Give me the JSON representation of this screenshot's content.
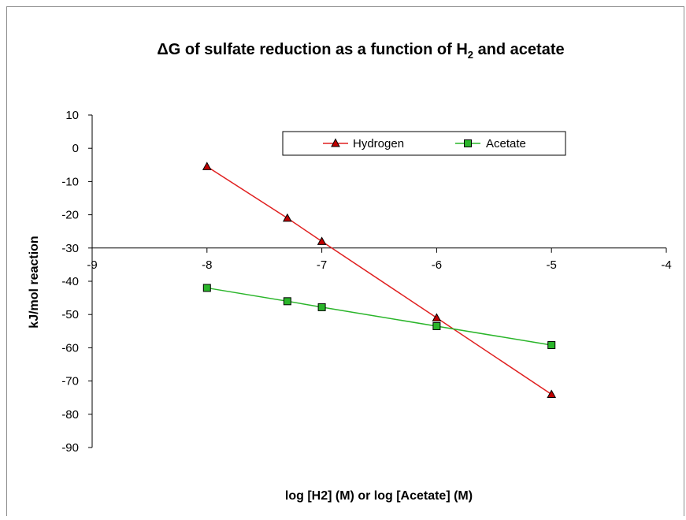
{
  "chart_data": {
    "type": "line",
    "title_parts": {
      "pre": "ΔG of sulfate reduction as a function of H",
      "sub": "2",
      "post": " and acetate"
    },
    "xlabel": "log [H2] (M)  or log  [Acetate] (M)",
    "ylabel": "kJ/mol reaction",
    "xlim": [
      -9,
      -4
    ],
    "ylim": [
      -90,
      10
    ],
    "x_ticks": [
      -9,
      -8,
      -7,
      -6,
      -5,
      -4
    ],
    "y_ticks": [
      10,
      0,
      -10,
      -20,
      -30,
      -40,
      -50,
      -60,
      -70,
      -80,
      -90
    ],
    "x_axis_crosses_y_at": -30,
    "grid": false,
    "legend_position": "top-right",
    "series": [
      {
        "name": "Hydrogen",
        "color": "#e02020",
        "marker": "triangle",
        "x": [
          -8,
          -7.3,
          -7,
          -6,
          -5
        ],
        "y": [
          -5.5,
          -21,
          -28,
          -51,
          -74
        ]
      },
      {
        "name": "Acetate",
        "color": "#2ab52a",
        "marker": "square",
        "x": [
          -8,
          -7.3,
          -7,
          -6,
          -5
        ],
        "y": [
          -42,
          -46,
          -47.8,
          -53.5,
          -59.2
        ]
      }
    ]
  }
}
